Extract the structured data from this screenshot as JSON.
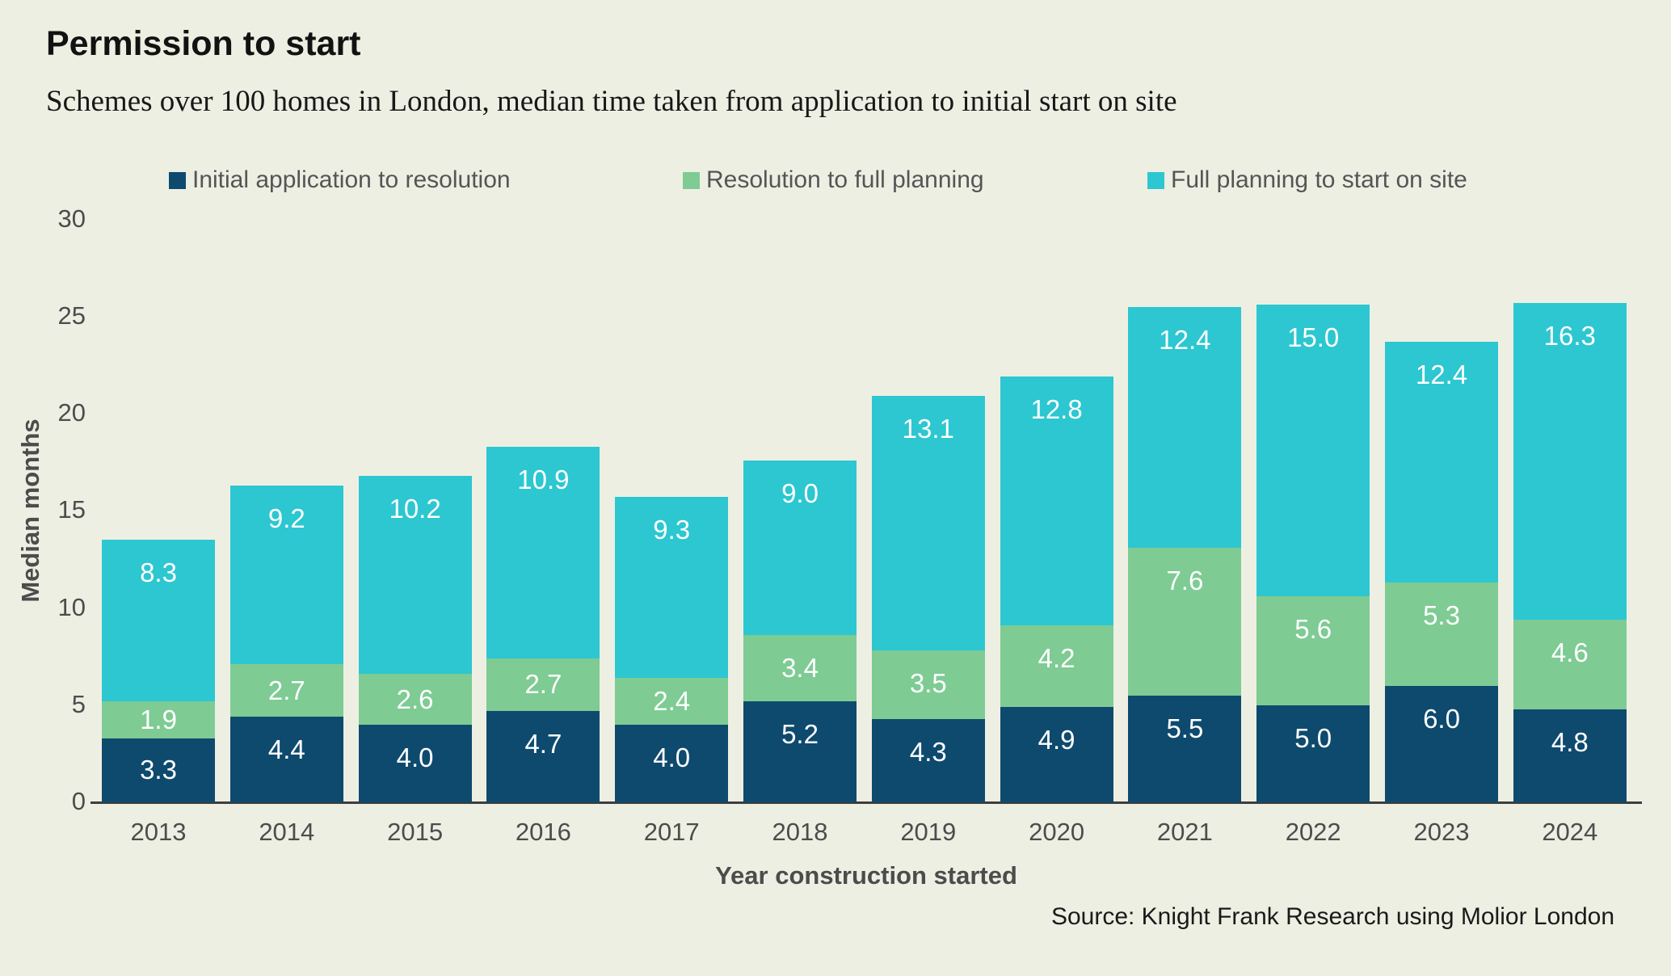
{
  "chart_data": {
    "type": "bar",
    "stacked": true,
    "title": "Permission to start",
    "subtitle": "Schemes over 100 homes in London, median time taken from application to initial start on site",
    "ylabel": "Median months",
    "xlabel": "Year construction started",
    "source": "Source: Knight Frank Research using Molior London",
    "ylim": [
      0,
      30
    ],
    "y_ticks": [
      0,
      5,
      10,
      15,
      20,
      25,
      30
    ],
    "grid": false,
    "legend_position": "top",
    "value_label_format": "one_decimal_white_inside_end",
    "categories": [
      "2013",
      "2014",
      "2015",
      "2016",
      "2017",
      "2018",
      "2019",
      "2020",
      "2021",
      "2022",
      "2023",
      "2024"
    ],
    "series": [
      {
        "name": "Initial application to resolution",
        "color": "#0e4a6e",
        "values": [
          3.3,
          4.4,
          4.0,
          4.7,
          4.0,
          5.2,
          4.3,
          4.9,
          5.5,
          5.0,
          6.0,
          4.8
        ]
      },
      {
        "name": "Resolution to full planning",
        "color": "#7ecb94",
        "values": [
          1.9,
          2.7,
          2.6,
          2.7,
          2.4,
          3.4,
          3.5,
          4.2,
          7.6,
          5.6,
          5.3,
          4.6
        ]
      },
      {
        "name": "Full planning to start on site",
        "color": "#2cc7d1",
        "values": [
          8.3,
          9.2,
          10.2,
          10.9,
          9.3,
          9.0,
          13.1,
          12.8,
          12.4,
          15.0,
          12.4,
          16.3
        ]
      }
    ]
  },
  "colors": {
    "background": "#eeefe3",
    "axis_line": "#3d3d3d",
    "tick_text": "#4c4c4c",
    "legend_text": "#555555",
    "title_text": "#121212",
    "value_label_text": "#ffffff"
  }
}
